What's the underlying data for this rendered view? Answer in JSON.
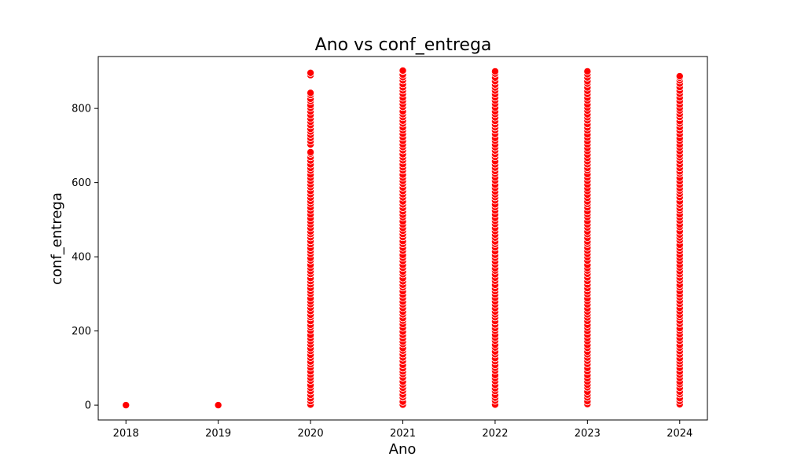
{
  "chart_data": {
    "type": "scatter",
    "title": "Ano vs conf_entrega",
    "xlabel": "Ano",
    "ylabel": "conf_entrega",
    "x_ticks": [
      "2018",
      "2019",
      "2020",
      "2021",
      "2022",
      "2023",
      "2024"
    ],
    "y_ticks": [
      "0",
      "200",
      "400",
      "600",
      "800"
    ],
    "xlim": [
      2017.7,
      2024.3
    ],
    "ylim": [
      -40,
      940
    ],
    "grid": false,
    "legend": "none",
    "marker_color": "#ff0000",
    "marker_edge_color": "#ffffff",
    "series": [
      {
        "points_by_year": [
          {
            "x": 2018,
            "y": [
              0
            ]
          },
          {
            "x": 2019,
            "y": [
              0
            ]
          },
          {
            "x": 2020,
            "y_ranges": [
              [
                0,
                682
              ],
              [
                700,
                842
              ],
              [
                888,
                896
              ]
            ]
          },
          {
            "x": 2021,
            "y_ranges": [
              [
                0,
                902
              ]
            ]
          },
          {
            "x": 2022,
            "y_ranges": [
              [
                0,
                900
              ]
            ]
          },
          {
            "x": 2023,
            "y_ranges": [
              [
                0,
                900
              ]
            ]
          },
          {
            "x": 2024,
            "y_ranges": [
              [
                0,
                887
              ]
            ]
          }
        ]
      }
    ]
  }
}
